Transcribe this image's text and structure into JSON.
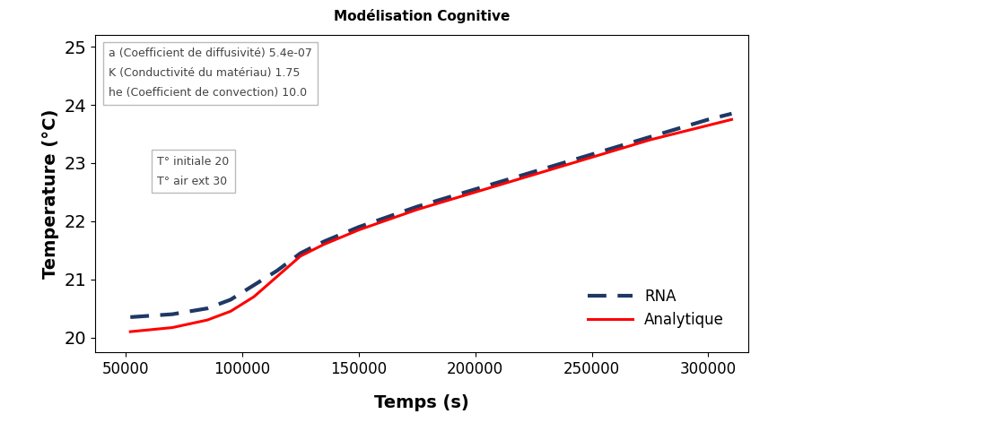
{
  "chart_data": {
    "type": "line",
    "title": "Modélisation Cognitive",
    "x_label": "Temps (s)",
    "y_label": "Temperature (°C)",
    "annotations": [
      [
        "a (Coefficient de diffusivité) 5.4e-07",
        "K (Conductivité du matériau) 1.75",
        "he (Coefficient de convection) 10.0"
      ],
      [
        "T° initiale 20",
        "T° air ext 30"
      ]
    ],
    "series": [
      {
        "name": "RNA",
        "color": "#1f3864",
        "line_style": "dashed",
        "x": [
          52000,
          70000,
          85000,
          95000,
          105000,
          115000,
          125000,
          135000,
          150000,
          175000,
          200000,
          225000,
          250000,
          275000,
          300000,
          310000
        ],
        "values": [
          20.35,
          20.4,
          20.5,
          20.65,
          20.9,
          21.15,
          21.45,
          21.65,
          21.9,
          22.25,
          22.55,
          22.85,
          23.15,
          23.45,
          23.75,
          23.85
        ]
      },
      {
        "name": "Analytique",
        "color": "#ff0000",
        "line_style": "solid",
        "x": [
          52000,
          70000,
          85000,
          95000,
          105000,
          115000,
          125000,
          135000,
          150000,
          175000,
          200000,
          225000,
          250000,
          275000,
          300000,
          310000
        ],
        "values": [
          20.1,
          20.17,
          20.3,
          20.45,
          20.7,
          21.05,
          21.4,
          21.6,
          21.85,
          22.2,
          22.5,
          22.8,
          23.1,
          23.4,
          23.65,
          23.75
        ]
      }
    ],
    "xlim": [
      37000,
      317000
    ],
    "xticks": [
      50000,
      100000,
      150000,
      200000,
      250000,
      300000
    ],
    "ylim": [
      19.75,
      25.2
    ],
    "yticks": [
      20,
      21,
      22,
      23,
      24,
      25
    ],
    "grid": false,
    "legend": "lower right"
  }
}
